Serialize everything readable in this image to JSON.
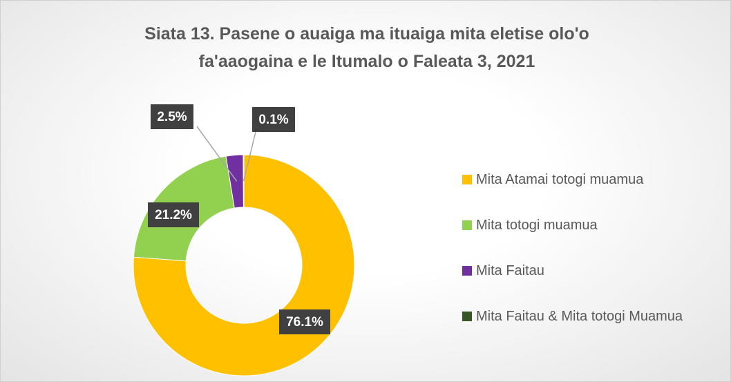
{
  "chart_data": {
    "type": "donut",
    "title": "Siata 13. Pasene o auaiga ma ituaiga mita eletise olo'o fa'aaogaina e le Itumalo o Faleata 3, 2021",
    "categories": [
      "Mita Atamai totogi muamua",
      "Mita totogi muamua",
      "Mita Faitau",
      "Mita Faitau & Mita totogi Muamua"
    ],
    "values": [
      76.1,
      21.2,
      2.5,
      0.1
    ],
    "value_labels": [
      "76.1%",
      "21.2%",
      "2.5%",
      "0.1%"
    ],
    "colors": [
      "#FFC000",
      "#92D050",
      "#7030A0",
      "#375623"
    ],
    "legend": "right"
  }
}
